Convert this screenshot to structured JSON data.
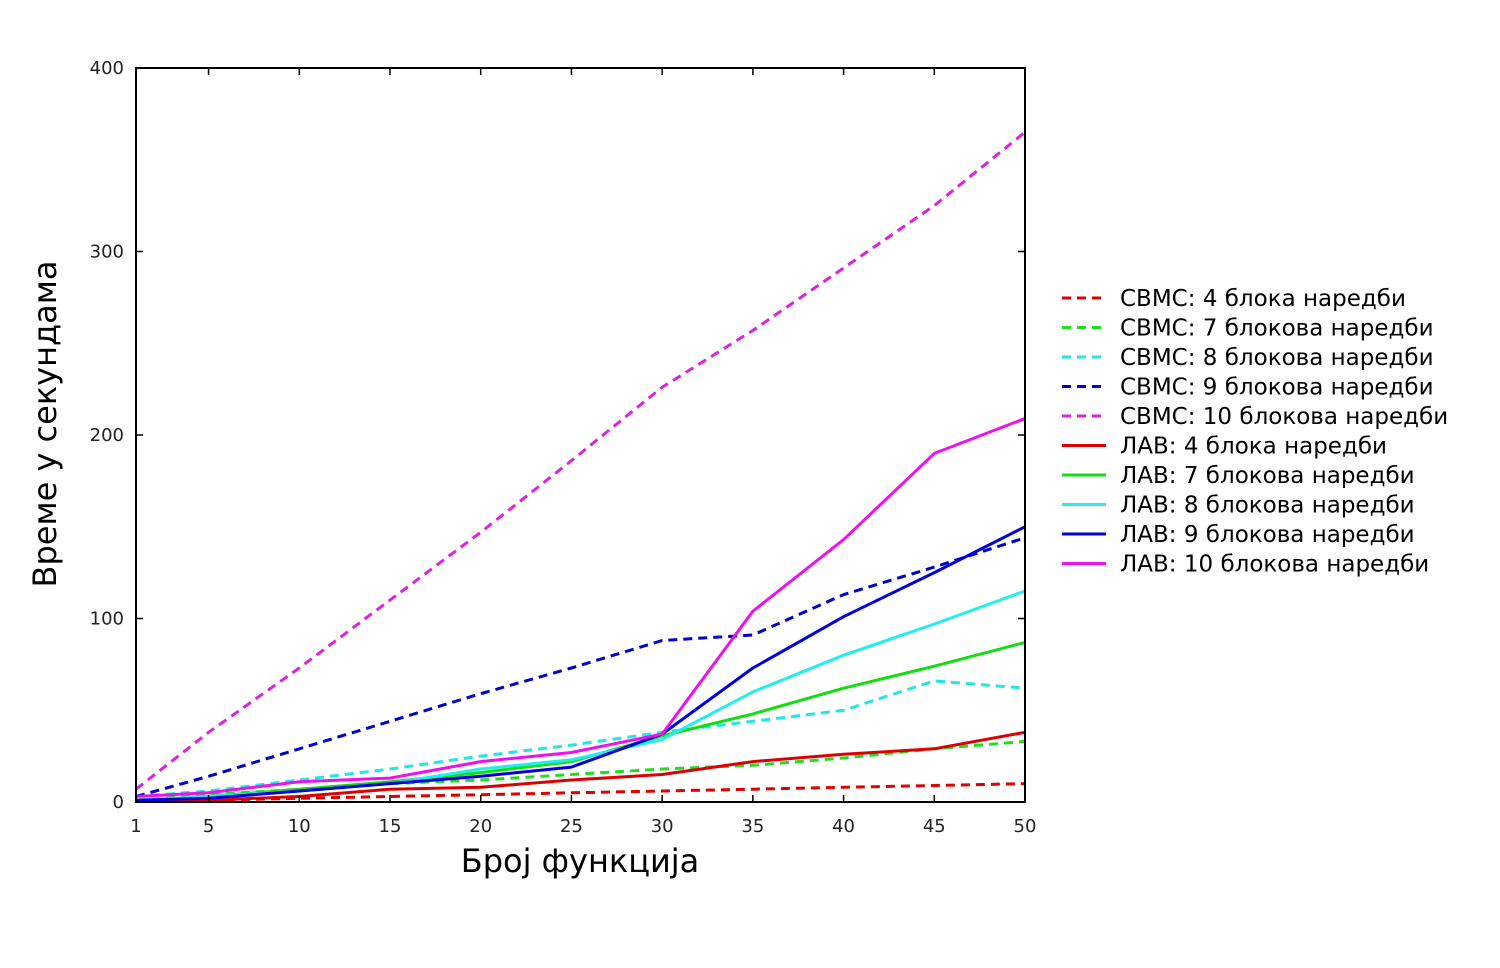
{
  "chart_data": {
    "type": "line",
    "title": "",
    "xlabel": "Број функција",
    "ylabel": "Време у секундама",
    "x": [
      1,
      5,
      10,
      15,
      20,
      25,
      30,
      35,
      40,
      45,
      50
    ],
    "xticks": [
      1,
      5,
      10,
      15,
      20,
      25,
      30,
      35,
      40,
      45,
      50
    ],
    "yticks": [
      0,
      100,
      200,
      300,
      400
    ],
    "xlim": [
      1,
      50
    ],
    "ylim": [
      0,
      400
    ],
    "grid": false,
    "legend_position": "right",
    "series": [
      {
        "name": "СВМС: 4 блока наредби",
        "color": "#e00000",
        "style": "dashed",
        "values": [
          1,
          1,
          2,
          3,
          4,
          5,
          6,
          7,
          8,
          9,
          10
        ]
      },
      {
        "name": "СВМС: 7 блокова наредби",
        "color": "#22dd22",
        "style": "dashed",
        "values": [
          1,
          4,
          7,
          10,
          12,
          15,
          18,
          20,
          24,
          29,
          33
        ]
      },
      {
        "name": "СВМС: 8 блокова наредби",
        "color": "#22e5e5",
        "style": "dashed",
        "values": [
          3,
          6,
          12,
          18,
          25,
          31,
          38,
          44,
          50,
          66,
          62
        ]
      },
      {
        "name": "СВМС: 9 блокова наредби",
        "color": "#0000cc",
        "style": "dashed",
        "values": [
          3,
          14,
          29,
          44,
          59,
          73,
          88,
          91,
          113,
          128,
          144
        ]
      },
      {
        "name": "СВМС: 10 блокова наредби",
        "color": "#dd22dd",
        "style": "dashed",
        "values": [
          7,
          38,
          73,
          110,
          147,
          186,
          226,
          257,
          291,
          325,
          365
        ]
      },
      {
        "name": "ЛАВ: 4 блока наредби",
        "color": "#dd0000",
        "style": "solid",
        "values": [
          1,
          1,
          3,
          7,
          8,
          12,
          15,
          22,
          26,
          29,
          38
        ]
      },
      {
        "name": "ЛАВ: 7 блокова наредби",
        "color": "#11dd11",
        "style": "solid",
        "values": [
          1,
          3,
          7,
          11,
          16,
          22,
          36,
          48,
          62,
          74,
          87
        ]
      },
      {
        "name": "ЛАВ: 8 блокова наредби",
        "color": "#22eeee",
        "style": "solid",
        "values": [
          1,
          3,
          6,
          10,
          18,
          23,
          34,
          60,
          80,
          97,
          115
        ]
      },
      {
        "name": "ЛАВ: 9 блокова наредби",
        "color": "#0000dd",
        "style": "solid",
        "values": [
          1,
          2,
          6,
          10,
          14,
          19,
          37,
          73,
          101,
          125,
          150
        ]
      },
      {
        "name": "ЛАВ: 10 блокова наредби",
        "color": "#ee11ee",
        "style": "solid",
        "values": [
          3,
          5,
          11,
          13,
          22,
          27,
          37,
          104,
          143,
          190,
          209
        ]
      }
    ]
  }
}
